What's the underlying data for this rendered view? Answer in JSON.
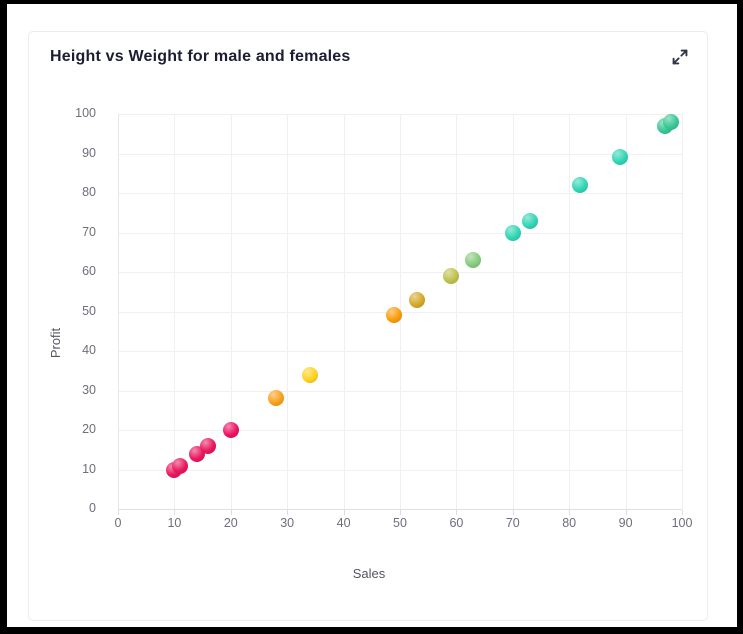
{
  "card": {
    "title": "Height vs Weight for male and females",
    "expand_icon": "diagonal-expand-arrows",
    "border_color": "#ececf1",
    "title_color": "#1c1d33"
  },
  "chart_data": {
    "type": "scatter",
    "title": "Height vs Weight for male and females",
    "xlabel": "Sales",
    "ylabel": "Profit",
    "xlim": [
      0,
      100
    ],
    "ylim": [
      0,
      100
    ],
    "x_ticks": [
      0,
      10,
      20,
      30,
      40,
      50,
      60,
      70,
      80,
      90,
      100
    ],
    "y_ticks": [
      0,
      10,
      20,
      30,
      40,
      50,
      60,
      70,
      80,
      90,
      100
    ],
    "grid": true,
    "legend": "none",
    "gridline_color": "#f0f0f3",
    "tick_label_color": "#6e6e7c",
    "points": [
      {
        "x": 10,
        "y": 10,
        "color": "#e9175e"
      },
      {
        "x": 11,
        "y": 11,
        "color": "#e9175e"
      },
      {
        "x": 14,
        "y": 14,
        "color": "#e9175e"
      },
      {
        "x": 16,
        "y": 16,
        "color": "#e9175e"
      },
      {
        "x": 20,
        "y": 20,
        "color": "#ed1164"
      },
      {
        "x": 28,
        "y": 28,
        "color": "#f9a01b"
      },
      {
        "x": 34,
        "y": 34,
        "color": "#ffd21e"
      },
      {
        "x": 49,
        "y": 49,
        "color": "#fa9c0a"
      },
      {
        "x": 53,
        "y": 53,
        "color": "#d4a828"
      },
      {
        "x": 59,
        "y": 59,
        "color": "#bcc14d"
      },
      {
        "x": 63,
        "y": 63,
        "color": "#86cb7d"
      },
      {
        "x": 70,
        "y": 70,
        "color": "#2fd5b3"
      },
      {
        "x": 73,
        "y": 73,
        "color": "#2fd5b3"
      },
      {
        "x": 82,
        "y": 82,
        "color": "#2fd5b3"
      },
      {
        "x": 89,
        "y": 89,
        "color": "#2fd5b3"
      },
      {
        "x": 97,
        "y": 97,
        "color": "#38c795"
      },
      {
        "x": 98,
        "y": 98,
        "color": "#38c795"
      }
    ]
  }
}
